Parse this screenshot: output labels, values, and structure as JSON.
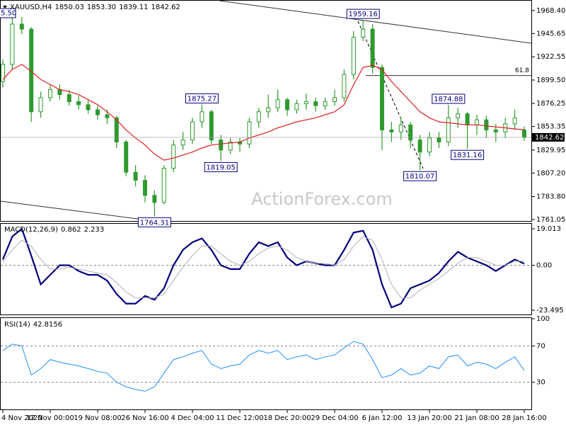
{
  "chart_data": [
    {
      "type": "candlestick",
      "title": "XAUUSD,H4",
      "header_labels": {
        "open": "1850.03",
        "high": "1853.30",
        "low": "1839.11",
        "close": "1842.62"
      },
      "categories": [
        "4 Nov 2020",
        null,
        null,
        null,
        null,
        "12 Nov 00:00",
        null,
        null,
        null,
        null,
        "19 Nov 08:00",
        null,
        null,
        null,
        null,
        "26 Nov 16:00",
        null,
        null,
        null,
        null,
        "4 Dec 04:00",
        null,
        null,
        null,
        null,
        "11 Dec 12:00",
        null,
        null,
        null,
        null,
        "18 Dec 20:00",
        null,
        null,
        null,
        null,
        "29 Dec 04:00",
        null,
        null,
        null,
        null,
        "6 Jan 12:00",
        null,
        null,
        null,
        null,
        "13 Jan 20:00",
        null,
        null,
        null,
        null,
        "21 Jan 08:00",
        null,
        null,
        null,
        null,
        "28 Jan 16:00"
      ],
      "open": [
        1898,
        1915,
        1955,
        1950,
        1868,
        1882,
        1890,
        1885,
        1878,
        1875,
        1870,
        1865,
        1862,
        1838,
        1808,
        1800,
        1785,
        1778,
        1812,
        1835,
        1840,
        1858,
        1868,
        1840,
        1830,
        1838,
        1836,
        1858,
        1868,
        1872,
        1880,
        1870,
        1876,
        1878,
        1874,
        1878,
        1882,
        1905,
        1942,
        1950,
        1912,
        1850,
        1848,
        1855,
        1840,
        1828,
        1842,
        1838,
        1862,
        1866,
        1855,
        1860,
        1850,
        1848,
        1856,
        1850.03
      ],
      "high": [
        1920,
        1965.5,
        1962,
        1952,
        1888,
        1895,
        1895,
        1890,
        1884,
        1880,
        1874,
        1870,
        1864,
        1840,
        1815,
        1805,
        1790,
        1815,
        1840,
        1848,
        1862,
        1875.27,
        1870,
        1845,
        1842,
        1842,
        1862,
        1872,
        1885,
        1890,
        1882,
        1880,
        1886,
        1882,
        1882,
        1890,
        1910,
        1948,
        1959.16,
        1955,
        1915,
        1858,
        1862,
        1858,
        1845,
        1848,
        1848,
        1874.88,
        1872,
        1868,
        1865,
        1864,
        1856,
        1862,
        1870,
        1853.3
      ],
      "low": [
        1892,
        1910,
        1945,
        1858,
        1862,
        1878,
        1880,
        1874,
        1870,
        1866,
        1860,
        1856,
        1832,
        1804,
        1794,
        1778,
        1764.31,
        1776,
        1808,
        1830,
        1836,
        1852,
        1836,
        1819.05,
        1826,
        1828,
        1832,
        1852,
        1862,
        1868,
        1864,
        1866,
        1870,
        1868,
        1870,
        1874,
        1878,
        1900,
        1938,
        1906,
        1830,
        1838,
        1840,
        1832,
        1810.07,
        1824,
        1832,
        1834,
        1852,
        1831.16,
        1845,
        1842,
        1838,
        1842,
        1850,
        1839.11
      ],
      "close": [
        1915,
        1955,
        1950,
        1868,
        1882,
        1890,
        1885,
        1878,
        1875,
        1870,
        1865,
        1862,
        1838,
        1808,
        1800,
        1785,
        1778,
        1812,
        1835,
        1840,
        1858,
        1868,
        1840,
        1830,
        1838,
        1836,
        1858,
        1868,
        1872,
        1880,
        1870,
        1876,
        1878,
        1874,
        1878,
        1882,
        1905,
        1942,
        1950,
        1912,
        1850,
        1848,
        1855,
        1840,
        1828,
        1842,
        1838,
        1862,
        1866,
        1855,
        1860,
        1850,
        1848,
        1856,
        1862,
        1842.62
      ],
      "color": "#2e9a2e",
      "ma": {
        "color": "#e02020",
        "values": [
          1900,
          1910,
          1915,
          1908,
          1900,
          1895,
          1890,
          1888,
          1885,
          1880,
          1875,
          1868,
          1860,
          1850,
          1842,
          1835,
          1826,
          1820,
          1822,
          1825,
          1828,
          1832,
          1835,
          1836,
          1837,
          1838,
          1842,
          1845,
          1848,
          1852,
          1855,
          1858,
          1860,
          1862,
          1865,
          1868,
          1875,
          1895,
          1912,
          1914,
          1910,
          1898,
          1888,
          1878,
          1868,
          1862,
          1858,
          1857,
          1856,
          1855,
          1855,
          1854,
          1853,
          1852,
          1851,
          1850
        ]
      },
      "high_marks": [
        21,
        38,
        47
      ],
      "low_marks": [
        16,
        23,
        44,
        49
      ],
      "fib_line": {
        "label": "61.8",
        "value": 1904
      },
      "clipped_label": "5.50",
      "watermark": "ActionForex.com",
      "ylim": [
        1759.6,
        1978.2
      ],
      "yticks": [
        {
          "value": 1968.4,
          "label": "1968.40"
        },
        1945.65,
        1922.55,
        {
          "value": 1899.5,
          "label": "1899.50"
        },
        1876.25,
        1853.35,
        1829.95,
        {
          "value": 1807.2,
          "label": "1807.20"
        },
        {
          "value": 1783.8,
          "label": "1783.80"
        },
        1761.05
      ]
    },
    {
      "type": "line",
      "title": "MACD(12,26,9)",
      "zero_line": true,
      "series": [
        {
          "color": "#000080",
          "width": 2.2,
          "values": [
            3,
            15,
            19,
            5,
            -10,
            -5,
            0,
            0,
            -3,
            -5,
            -5,
            -8,
            -15,
            -20,
            -20,
            -16,
            -18,
            -12,
            0,
            8,
            12,
            14,
            8,
            0,
            -2,
            -2,
            6,
            12,
            10,
            12,
            4,
            0,
            2,
            1,
            0,
            0,
            8,
            17,
            18,
            8,
            -10,
            -22,
            -20,
            -12,
            -10,
            -8,
            -4,
            2,
            7,
            4,
            2,
            0,
            -3,
            0,
            3,
            0.862
          ]
        },
        {
          "color": "#b0b0b0",
          "width": 1,
          "values": [
            2,
            8,
            13,
            10,
            3,
            -2,
            -2,
            -1,
            -2,
            -3,
            -4,
            -5,
            -9,
            -14,
            -17,
            -17,
            -17,
            -15,
            -8,
            -1,
            5,
            10,
            10,
            6,
            2,
            0,
            2,
            6,
            9,
            10,
            8,
            4,
            2,
            1,
            1,
            0,
            3,
            10,
            15,
            13,
            3,
            -10,
            -17,
            -17,
            -13,
            -10,
            -7,
            -3,
            1,
            4,
            4,
            2,
            0,
            0,
            2,
            2.233
          ]
        }
      ],
      "ylim": [
        -25.7,
        21.6
      ],
      "yticks": [
        19.013,
        {
          "value": 0,
          "label": "0.00"
        },
        -23.495
      ]
    },
    {
      "type": "line",
      "title": "RSI(14)",
      "grid": true,
      "series": [
        {
          "color": "#1e90ff",
          "width": 1,
          "values": [
            65,
            72,
            70,
            38,
            45,
            55,
            52,
            50,
            48,
            45,
            42,
            40,
            30,
            25,
            22,
            20,
            25,
            40,
            55,
            58,
            62,
            65,
            50,
            45,
            48,
            50,
            60,
            65,
            62,
            65,
            55,
            58,
            60,
            55,
            58,
            60,
            68,
            75,
            72,
            55,
            35,
            38,
            45,
            38,
            40,
            48,
            45,
            58,
            60,
            48,
            52,
            50,
            45,
            52,
            58,
            42.8156
          ]
        }
      ],
      "ylim": [
        0,
        100
      ],
      "yticks": [
        100,
        70,
        30
      ]
    }
  ]
}
